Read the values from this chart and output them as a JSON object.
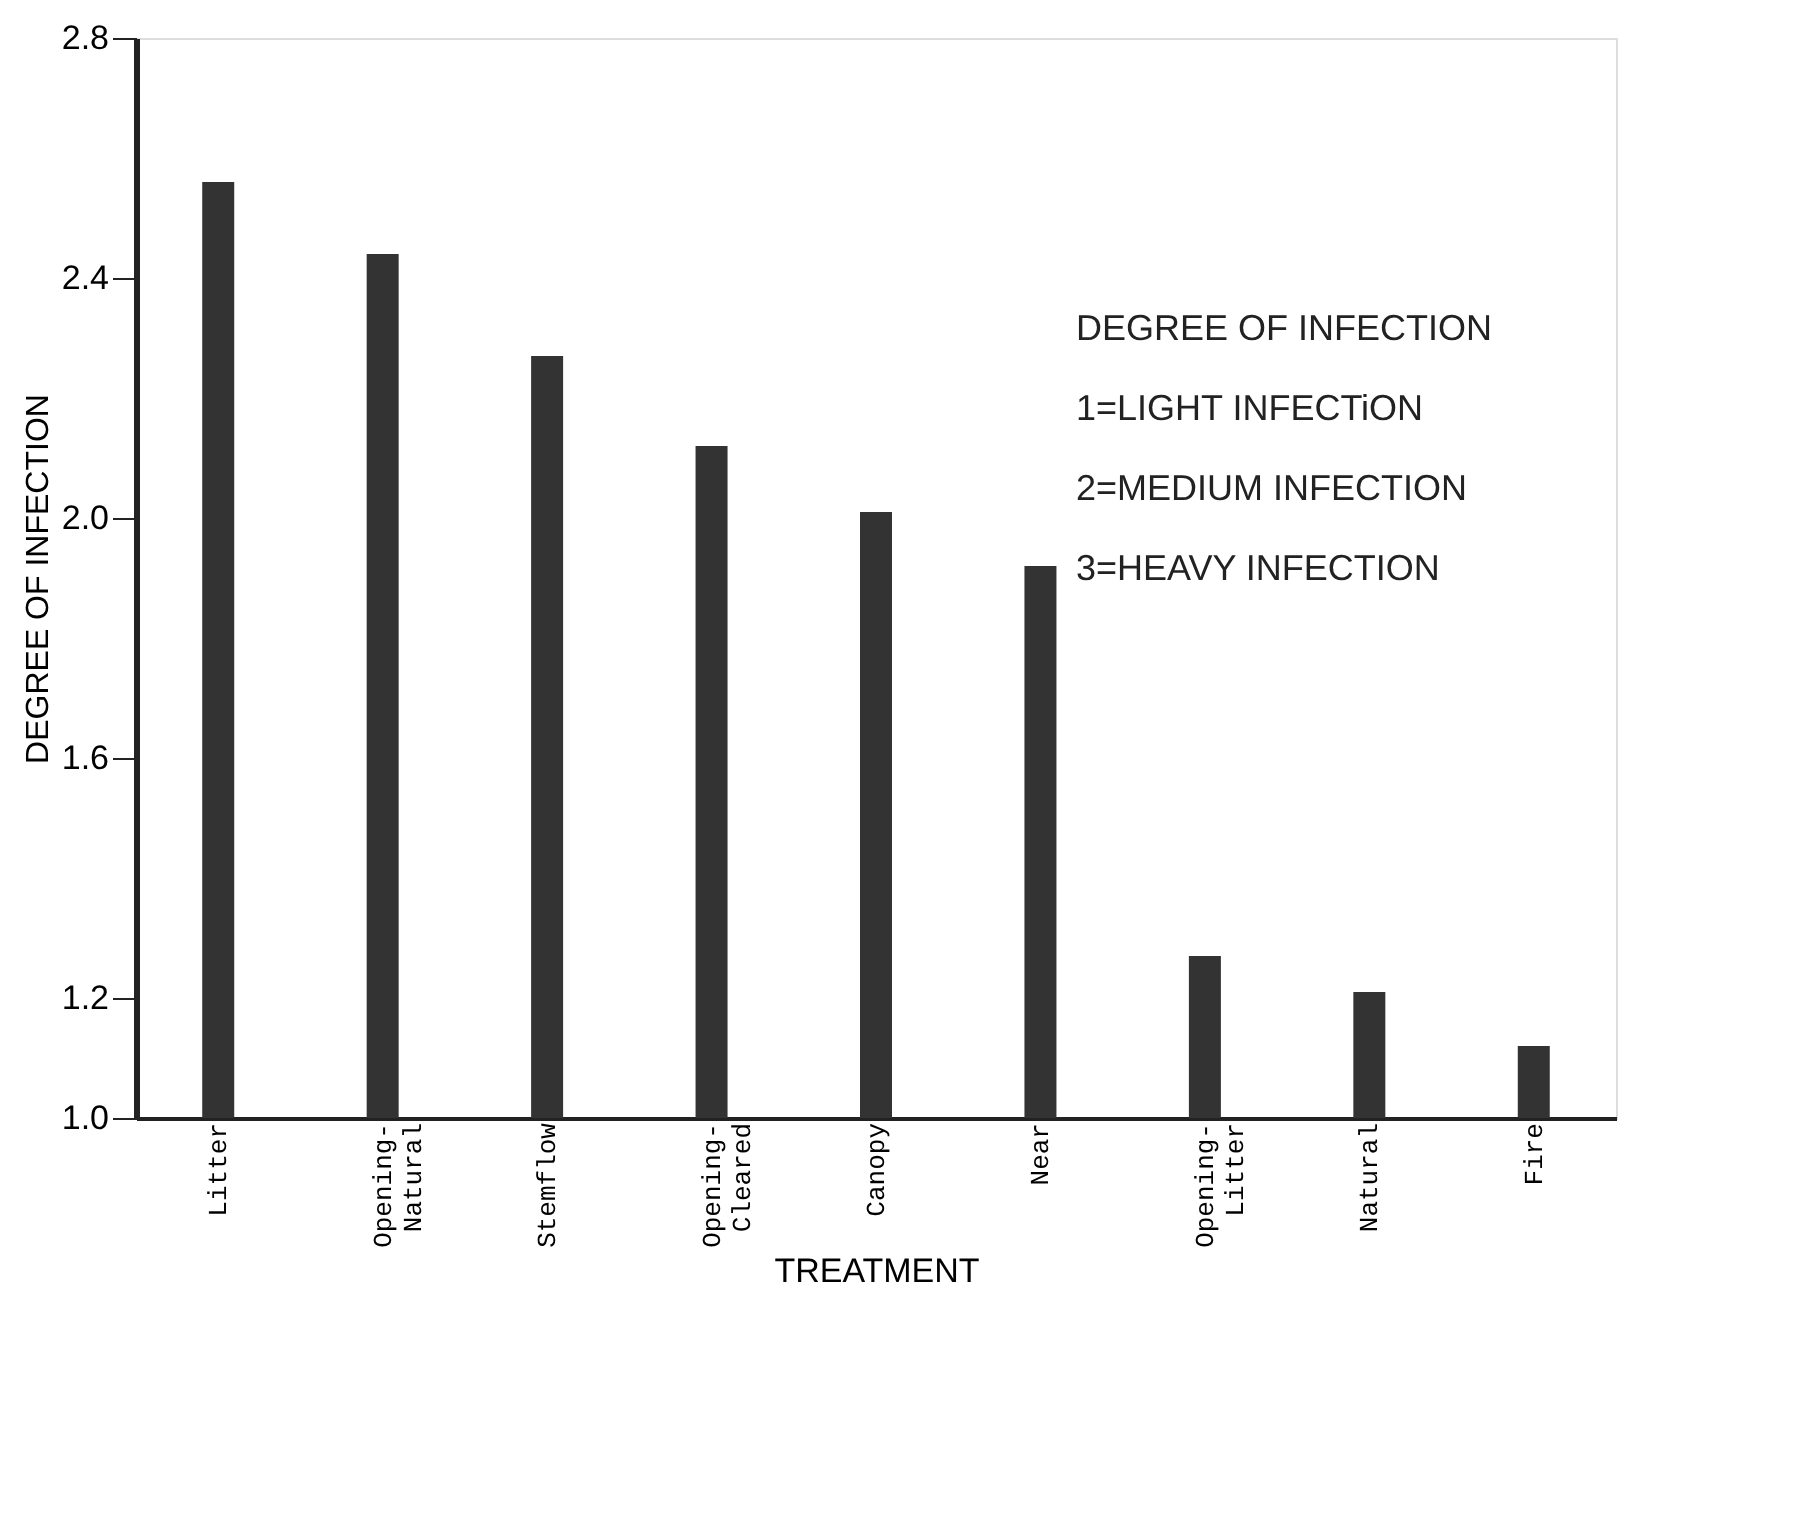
{
  "chart_data": {
    "type": "bar",
    "xlabel": "TREATMENT",
    "ylabel": "DEGREE OF INFECTION",
    "categories": [
      "Litter",
      "Opening-\nNatural",
      "Stemflow",
      "Opening-\nCleared",
      "Canopy",
      "Near",
      "Opening-\nLitter",
      "Natural",
      "Fire"
    ],
    "values": [
      2.56,
      2.44,
      2.27,
      2.12,
      2.01,
      1.92,
      1.27,
      1.21,
      1.12
    ],
    "color": "#333333",
    "ylim": [
      1.0,
      2.8
    ],
    "yticks": [
      {
        "value": 1,
        "label": "1.0"
      },
      1.2,
      1.6,
      {
        "value": 2,
        "label": "2.0"
      },
      2.4,
      2.8
    ],
    "grid": false,
    "annotations": [
      "DEGREE OF INFECTION",
      "1=LIGHT INFECTiON",
      "2=MEDIUM INFECTION",
      "3=HEAVY INFECTION"
    ]
  }
}
